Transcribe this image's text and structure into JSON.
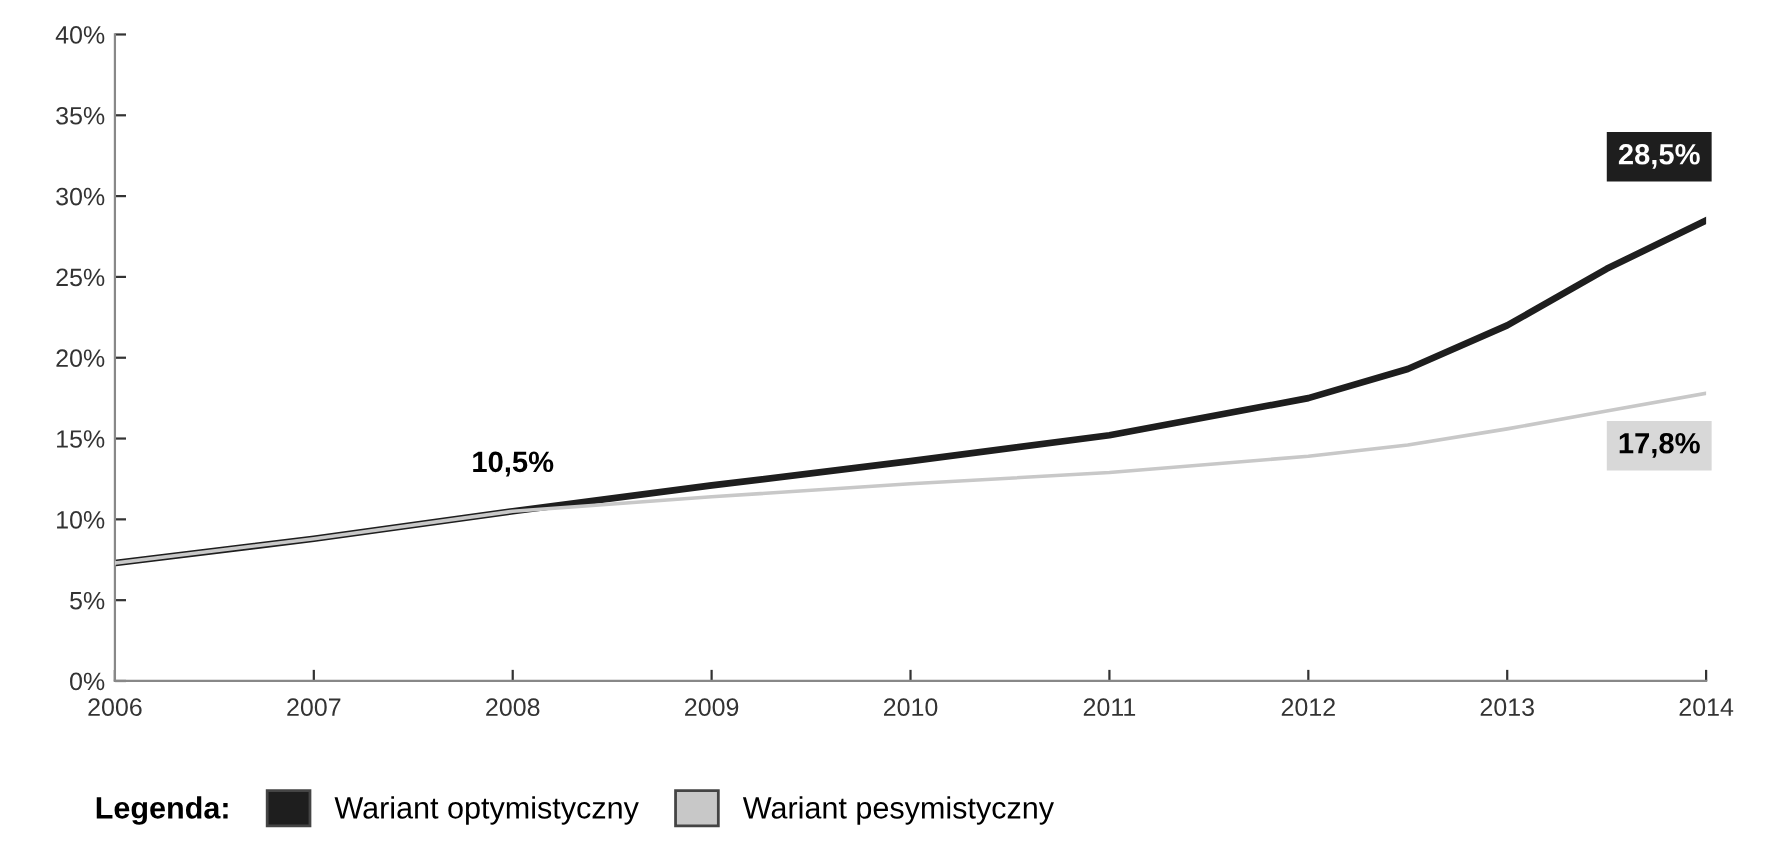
{
  "chart_data": {
    "type": "line",
    "x": [
      2006,
      2007,
      2008,
      2009,
      2010,
      2011,
      2012,
      2012.5,
      2013,
      2013.5,
      2014
    ],
    "series": [
      {
        "name": "Wariant optymistyczny",
        "color": "#1e1e1e",
        "values": [
          7.3,
          8.8,
          10.5,
          12.1,
          13.6,
          15.2,
          17.5,
          19.3,
          22.0,
          25.5,
          28.5
        ],
        "value_labels": [
          null,
          null,
          "10,5%",
          null,
          null,
          null,
          null,
          null,
          null,
          null,
          "28,5%"
        ]
      },
      {
        "name": "Wariant pesymistyczny",
        "color": "#c8c8c8",
        "values": [
          7.3,
          8.8,
          10.5,
          11.4,
          12.2,
          12.9,
          13.9,
          14.6,
          15.6,
          16.7,
          17.8
        ],
        "value_labels": [
          null,
          null,
          null,
          null,
          null,
          null,
          null,
          null,
          null,
          null,
          "17,8%"
        ]
      }
    ],
    "xlim": [
      2006,
      2014
    ],
    "xticks": [
      2006,
      2007,
      2008,
      2009,
      2010,
      2011,
      2012,
      2013,
      2014
    ],
    "ylim": [
      0,
      40
    ],
    "yticks": [
      {
        "value": 0,
        "label": "0%"
      },
      {
        "value": 5,
        "label": "5%"
      },
      {
        "value": 10,
        "label": "10%"
      },
      {
        "value": 15,
        "label": "15%"
      },
      {
        "value": 20,
        "label": "20%"
      },
      {
        "value": 25,
        "label": "25%"
      },
      {
        "value": 30,
        "label": "30%"
      },
      {
        "value": 35,
        "label": "35%"
      },
      {
        "value": 40,
        "label": "40%"
      }
    ],
    "legend_title": "Legenda:",
    "legend": "bottom",
    "grid": false,
    "marker": "none",
    "line_style": "solid"
  }
}
